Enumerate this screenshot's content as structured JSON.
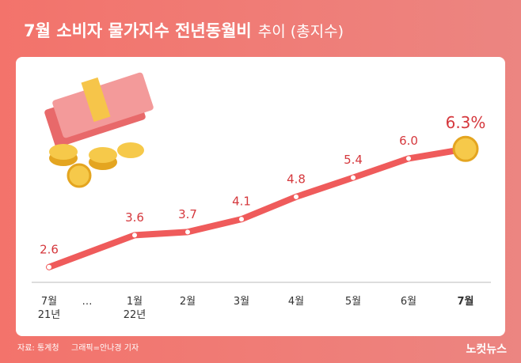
{
  "chart_data": {
    "type": "line",
    "title": "7월 소비자 물가지수 전년동월비",
    "subtitle": "추이 (총지수)",
    "categories": [
      "7월\n21년",
      "1월\n22년",
      "2월",
      "3월",
      "4월",
      "5월",
      "6월",
      "7월"
    ],
    "x_break_label": "…",
    "values": [
      2.6,
      3.6,
      3.7,
      4.1,
      4.8,
      5.4,
      6.0,
      6.3
    ],
    "value_labels": [
      "2.6",
      "3.6",
      "3.7",
      "4.1",
      "4.8",
      "5.4",
      "6.0",
      "6.3%"
    ],
    "color": "#ef5b5b",
    "ylim": [
      2,
      7
    ],
    "source": "자료: 통계청",
    "credit": "그래픽=안나경 기자",
    "logo": "노컷뉴스"
  }
}
